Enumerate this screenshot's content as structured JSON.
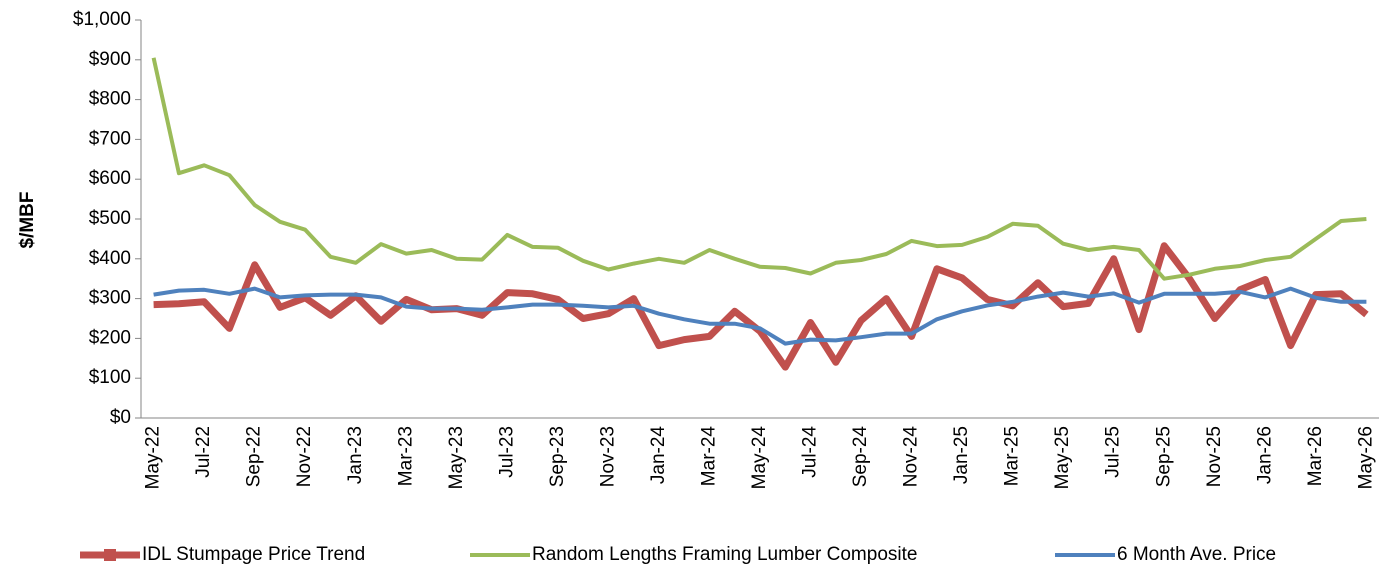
{
  "chart_data": {
    "type": "line",
    "y_label": "$/MBF",
    "categories": [
      "May-22",
      null,
      "Jul-22",
      null,
      "Sep-22",
      null,
      "Nov-22",
      null,
      "Jan-23",
      null,
      "Mar-23",
      null,
      "May-23",
      null,
      "Jul-23",
      null,
      "Sep-23",
      null,
      "Nov-23",
      null,
      "Jan-24",
      null,
      "Mar-24",
      null,
      "May-24",
      null,
      "Jul-24",
      null,
      "Sep-24",
      null,
      "Nov-24",
      null,
      "Jan-25",
      null,
      "Mar-25",
      null,
      "May-25",
      null,
      "Jul-25",
      null,
      "Sep-25",
      null,
      "Nov-25",
      null,
      "Jan-26",
      null,
      "Mar-26",
      null,
      "May-26"
    ],
    "series": [
      {
        "name": "IDL Stumpage Price Trend",
        "color": "#c0504d",
        "values": [
          285,
          287,
          292,
          225,
          385,
          278,
          302,
          258,
          307,
          243,
          298,
          272,
          275,
          258,
          315,
          312,
          298,
          250,
          262,
          300,
          182,
          197,
          205,
          268,
          218,
          128,
          240,
          140,
          245,
          300,
          205,
          375,
          352,
          298,
          282,
          340,
          280,
          288,
          400,
          222,
          433,
          350,
          250,
          322,
          348,
          182,
          310,
          312,
          260
        ]
      },
      {
        "name": "Random Lengths Framing Lumber Composite",
        "color": "#9bbb59",
        "values": [
          905,
          615,
          635,
          610,
          535,
          493,
          473,
          405,
          390,
          437,
          413,
          422,
          400,
          398,
          460,
          430,
          428,
          395,
          373,
          388,
          400,
          390,
          422,
          400,
          380,
          377,
          363,
          390,
          397,
          412,
          445,
          432,
          435,
          455,
          488,
          483,
          438,
          422,
          430,
          422,
          350,
          360,
          375,
          382,
          397,
          405,
          450,
          495,
          500
        ]
      },
      {
        "name": "6 Month Ave. Price",
        "color": "#4f81bd",
        "values": [
          310,
          320,
          322,
          312,
          325,
          303,
          308,
          310,
          310,
          303,
          280,
          275,
          275,
          272,
          278,
          285,
          285,
          282,
          278,
          282,
          262,
          248,
          237,
          237,
          225,
          187,
          197,
          195,
          203,
          212,
          212,
          248,
          268,
          283,
          292,
          305,
          315,
          305,
          313,
          290,
          312,
          312,
          312,
          317,
          303,
          325,
          302,
          292,
          292
        ]
      }
    ],
    "ylim": [
      0,
      1000
    ],
    "yticks": [
      {
        "value": 0,
        "label": "$0"
      },
      {
        "value": 100,
        "label": "$100"
      },
      {
        "value": 200,
        "label": "$200"
      },
      {
        "value": 300,
        "label": "$300"
      },
      {
        "value": 400,
        "label": "$400"
      },
      {
        "value": 500,
        "label": "$500"
      },
      {
        "value": 600,
        "label": "$600"
      },
      {
        "value": 700,
        "label": "$700"
      },
      {
        "value": 800,
        "label": "$800"
      },
      {
        "value": 900,
        "label": "$900"
      },
      {
        "value": 1000,
        "label": "$1,000"
      }
    ],
    "legend": "bottom"
  }
}
